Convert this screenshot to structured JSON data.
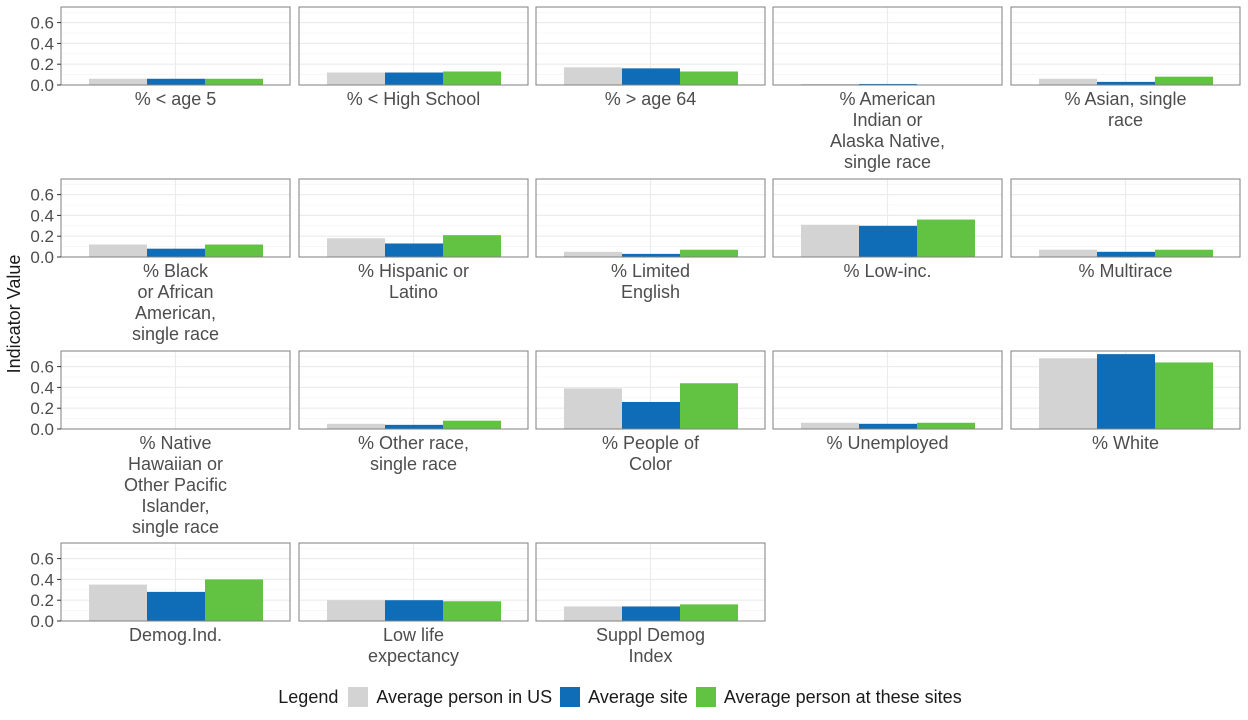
{
  "chart_data": {
    "type": "bar",
    "ylabel": "Indicator Value",
    "ylim": [
      0,
      0.75
    ],
    "yticks": [
      "0.0",
      "0.2",
      "0.4",
      "0.6"
    ],
    "grid": true,
    "facet_columns": 5,
    "series": [
      {
        "name": "Average person in US",
        "color": "#d3d3d3"
      },
      {
        "name": "Average site",
        "color": "#0f6cb6"
      },
      {
        "name": "Average person at these sites",
        "color": "#62c342"
      }
    ],
    "legend": {
      "title": "Legend",
      "position": "bottom"
    },
    "panels": [
      {
        "label": "% < age 5",
        "values": [
          0.06,
          0.06,
          0.06
        ]
      },
      {
        "label": "% < High School",
        "values": [
          0.12,
          0.12,
          0.13
        ]
      },
      {
        "label": "% > age 64",
        "values": [
          0.17,
          0.16,
          0.13
        ]
      },
      {
        "label": "% American Indian or Alaska Native, single race",
        "values": [
          0.01,
          0.01,
          0.0
        ]
      },
      {
        "label": "% Asian, single race",
        "values": [
          0.06,
          0.03,
          0.08
        ]
      },
      {
        "label": "% Black or African American, single race",
        "values": [
          0.12,
          0.08,
          0.12
        ]
      },
      {
        "label": "% Hispanic or Latino",
        "values": [
          0.18,
          0.13,
          0.21
        ]
      },
      {
        "label": "% Limited English",
        "values": [
          0.05,
          0.03,
          0.07
        ]
      },
      {
        "label": "% Low-inc.",
        "values": [
          0.31,
          0.3,
          0.36
        ]
      },
      {
        "label": "% Multirace",
        "values": [
          0.07,
          0.05,
          0.07
        ]
      },
      {
        "label": "% Native Hawaiian or Other Pacific Islander, single race",
        "values": [
          0.0,
          0.0,
          0.0
        ]
      },
      {
        "label": "% Other race, single race",
        "values": [
          0.05,
          0.04,
          0.08
        ]
      },
      {
        "label": "% People of Color",
        "values": [
          0.39,
          0.26,
          0.44
        ]
      },
      {
        "label": "% Unemployed",
        "values": [
          0.06,
          0.05,
          0.06
        ]
      },
      {
        "label": "% White",
        "values": [
          0.68,
          0.72,
          0.64
        ]
      },
      {
        "label": "Demog.Ind.",
        "values": [
          0.35,
          0.28,
          0.4
        ]
      },
      {
        "label": "Low life expectancy",
        "values": [
          0.2,
          0.2,
          0.19
        ]
      },
      {
        "label": "Suppl Demog Index",
        "values": [
          0.14,
          0.14,
          0.16
        ]
      }
    ]
  }
}
